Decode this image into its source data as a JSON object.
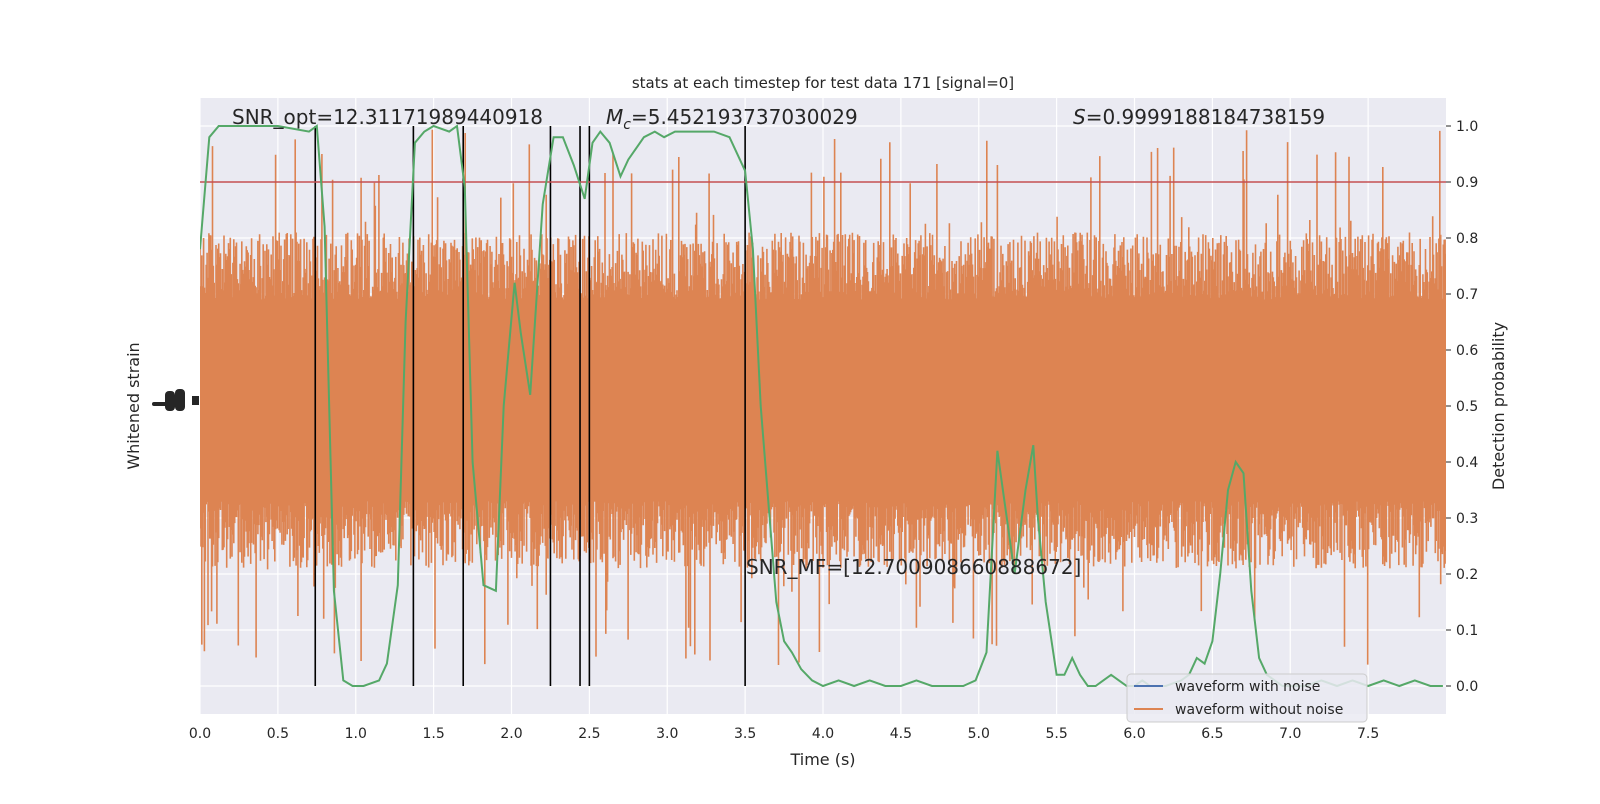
{
  "chart_data": {
    "type": "line",
    "title": "stats at each timestep for test data 171 [signal=0]",
    "xlabel": "Time (s)",
    "ylabel_left": "Whitened strain",
    "ylabel_right": "Detection probability",
    "xlim": [
      0.0,
      8.0
    ],
    "ylim_right": [
      -0.05,
      1.05
    ],
    "x_ticks": [
      0.0,
      0.5,
      1.0,
      1.5,
      2.0,
      2.5,
      3.0,
      3.5,
      4.0,
      4.5,
      5.0,
      5.5,
      6.0,
      6.5,
      7.0,
      7.5
    ],
    "x_tick_labels": [
      "0.0",
      "0.5",
      "1.0",
      "1.5",
      "2.0",
      "2.5",
      "3.0",
      "3.5",
      "4.0",
      "4.5",
      "5.0",
      "5.5",
      "6.0",
      "6.5",
      "7.0",
      "7.5"
    ],
    "y_ticks_right": [
      0.0,
      0.1,
      0.2,
      0.3,
      0.4,
      0.5,
      0.6,
      0.7,
      0.8,
      0.9,
      1.0
    ],
    "y_tick_labels_right": [
      "0.0",
      "0.1",
      "0.2",
      "0.3",
      "0.4",
      "0.5",
      "0.6",
      "0.7",
      "0.8",
      "0.9",
      "1.0"
    ],
    "threshold": 0.9,
    "vertical_lines": [
      0.74,
      1.37,
      1.69,
      2.25,
      2.44,
      2.5,
      3.5
    ],
    "annotations": {
      "snr_opt": "SNR_opt=12.31171989440918",
      "mc_symbol": "M",
      "mc_sub": "c",
      "mc_value": "=5.452193737030029",
      "s_symbol": "S",
      "s_value": "=0.9999188184738159",
      "snr_mf": "SNR_MF=[12.700908660888672]"
    },
    "series": [
      {
        "name": "waveform with noise",
        "color": "#4c72b0",
        "note": "hidden beneath the orange trace"
      },
      {
        "name": "waveform without noise",
        "color": "#dd8452",
        "band_core": [
          0.33,
          0.69
        ],
        "band_spikes": [
          0.03,
          1.0
        ]
      },
      {
        "name": "detection probability",
        "color": "#55a868",
        "x": [
          0.0,
          0.06,
          0.12,
          0.25,
          0.5,
          0.7,
          0.75,
          0.8,
          0.86,
          0.92,
          0.98,
          1.05,
          1.15,
          1.2,
          1.27,
          1.32,
          1.38,
          1.44,
          1.5,
          1.6,
          1.65,
          1.7,
          1.75,
          1.82,
          1.9,
          1.95,
          2.02,
          2.06,
          2.12,
          2.2,
          2.27,
          2.33,
          2.4,
          2.47,
          2.52,
          2.57,
          2.63,
          2.7,
          2.75,
          2.85,
          2.92,
          2.98,
          3.05,
          3.15,
          3.3,
          3.4,
          3.5,
          3.55,
          3.6,
          3.7,
          3.75,
          3.8,
          3.86,
          3.93,
          4.0,
          4.1,
          4.2,
          4.3,
          4.4,
          4.5,
          4.6,
          4.7,
          4.8,
          4.9,
          4.98,
          5.05,
          5.12,
          5.18,
          5.23,
          5.3,
          5.35,
          5.38,
          5.43,
          5.5,
          5.55,
          5.6,
          5.65,
          5.7,
          5.75,
          5.8,
          5.85,
          5.9,
          5.95,
          6.0,
          6.05,
          6.1,
          6.2,
          6.3,
          6.35,
          6.4,
          6.45,
          6.5,
          6.55,
          6.6,
          6.65,
          6.7,
          6.75,
          6.8,
          6.85,
          6.9,
          6.95,
          7.0,
          7.05,
          7.1,
          7.2,
          7.3,
          7.4,
          7.5,
          7.6,
          7.7,
          7.8,
          7.9,
          7.98
        ],
        "y": [
          0.78,
          0.98,
          1.0,
          1.0,
          1.0,
          0.99,
          1.0,
          0.82,
          0.17,
          0.01,
          0.0,
          0.0,
          0.01,
          0.04,
          0.18,
          0.65,
          0.97,
          0.99,
          1.0,
          0.99,
          1.0,
          0.89,
          0.4,
          0.18,
          0.17,
          0.5,
          0.72,
          0.63,
          0.52,
          0.86,
          0.98,
          0.98,
          0.93,
          0.87,
          0.97,
          0.99,
          0.97,
          0.91,
          0.94,
          0.98,
          0.99,
          0.98,
          0.99,
          0.99,
          0.99,
          0.98,
          0.92,
          0.78,
          0.5,
          0.15,
          0.08,
          0.06,
          0.03,
          0.01,
          0.0,
          0.01,
          0.0,
          0.01,
          0.0,
          0.0,
          0.01,
          0.0,
          0.0,
          0.0,
          0.01,
          0.06,
          0.42,
          0.3,
          0.2,
          0.35,
          0.43,
          0.3,
          0.15,
          0.02,
          0.02,
          0.05,
          0.02,
          0.0,
          0.0,
          0.01,
          0.02,
          0.01,
          0.0,
          0.0,
          0.01,
          0.0,
          0.0,
          0.01,
          0.02,
          0.05,
          0.04,
          0.08,
          0.2,
          0.35,
          0.4,
          0.38,
          0.17,
          0.05,
          0.02,
          0.01,
          0.0,
          0.0,
          0.0,
          0.0,
          0.01,
          0.0,
          0.01,
          0.0,
          0.01,
          0.0,
          0.01,
          0.0,
          0.0
        ]
      }
    ],
    "legend": {
      "position": "lower-right",
      "entries": [
        "waveform with noise",
        "waveform without noise"
      ]
    },
    "colors": {
      "plot_background": "#eaeaf2",
      "grid": "#ffffff",
      "threshold_line": "#c44e52",
      "vertical_markers": "#000000"
    }
  }
}
